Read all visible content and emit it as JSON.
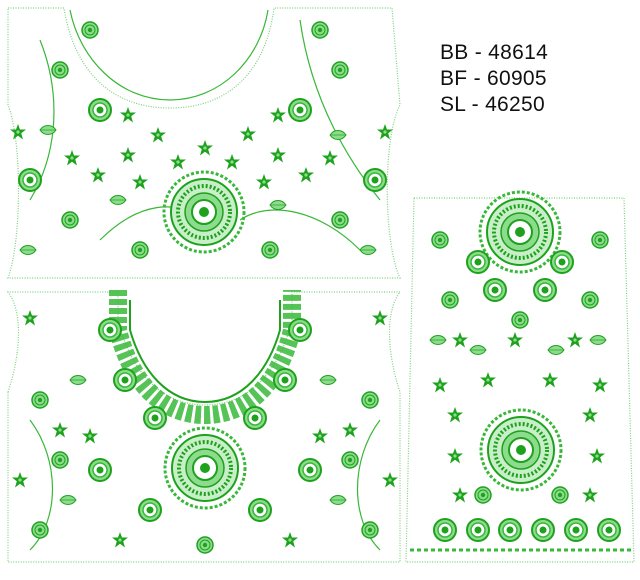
{
  "codes": {
    "bb": "BB - 48614",
    "bf": "BF - 60905",
    "sl": "SL - 46250"
  },
  "colors": {
    "background": "#ffffff",
    "outline": "#7dcf7d",
    "embroidery_dark": "#1ea21e",
    "embroidery_mid": "#38b838",
    "embroidery_light": "#8ddc8d",
    "text": "#111111"
  },
  "panels": {
    "back_panel": "blouse-back-panel",
    "front_panel": "blouse-front-panel",
    "sleeve_panel": "sleeve-panel"
  }
}
